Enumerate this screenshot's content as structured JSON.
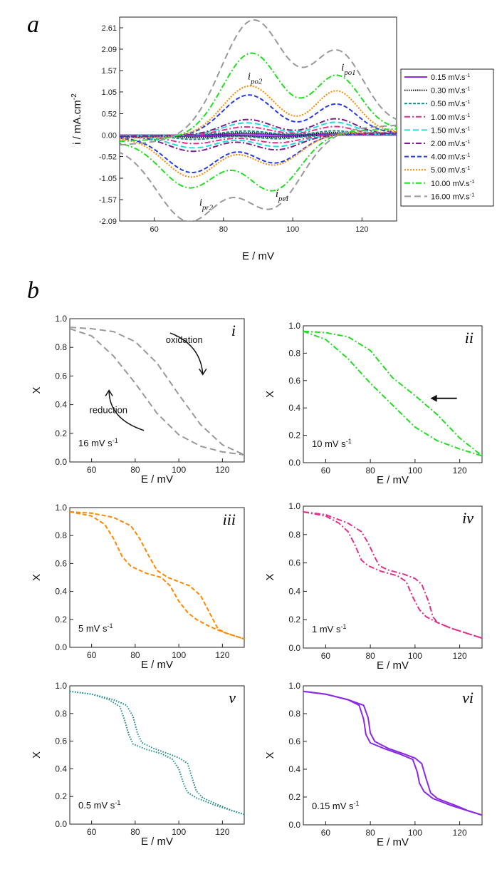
{
  "panel_labels": {
    "a": "a",
    "b": "b"
  },
  "chart_data": [
    {
      "id": "a",
      "type": "line",
      "xlabel": "E  /  mV",
      "ylabel": "i  /  mA.cm",
      "ylabel_exp": "-2",
      "xlim": [
        50,
        130
      ],
      "ylim": [
        -2.09,
        2.87
      ],
      "xticks": [
        60,
        80,
        100,
        120
      ],
      "yticks": [
        -2.09,
        -1.57,
        -1.05,
        -0.52,
        0.0,
        0.52,
        1.05,
        1.57,
        2.09,
        2.61
      ],
      "ytick_labels": [
        "-2.09",
        "-1.57",
        "-1.05",
        "-0.52",
        "0.00",
        "0.52",
        "1.05",
        "1.57",
        "2.09",
        "2.61"
      ],
      "legend_position": "right",
      "peak_labels": [
        {
          "main": "i",
          "sub": "po2",
          "x": 87,
          "y": 1.35
        },
        {
          "main": "i",
          "sub": "po1",
          "x": 114,
          "y": 1.57
        },
        {
          "main": "i",
          "sub": "pr1",
          "x": 95,
          "y": -1.5
        },
        {
          "main": "i",
          "sub": "pr2",
          "x": 73,
          "y": -1.72
        }
      ],
      "series": [
        {
          "name": "0.15 mV.s",
          "rate": 0.15,
          "color": "#8a2be2",
          "dash": "",
          "ox1": 0.03,
          "ox2": 0.03,
          "rd1": 0.03,
          "rd2": 0.03,
          "w": 2.0,
          "lag": 0.3
        },
        {
          "name": "0.30 mV.s",
          "rate": 0.3,
          "color": "#111111",
          "dash": "1.5,1.5",
          "ox1": 0.06,
          "ox2": 0.06,
          "rd1": 0.06,
          "rd2": 0.06,
          "w": 2.2,
          "lag": 0.5
        },
        {
          "name": "0.50 mV.s",
          "rate": 0.5,
          "color": "#1a8a8a",
          "dash": "4,2",
          "ox1": 0.1,
          "ox2": 0.1,
          "rd1": 0.09,
          "rd2": 0.1,
          "w": 2.5,
          "lag": 0.7
        },
        {
          "name": "1.00 mV.s",
          "rate": 1.0,
          "color": "#e0308a",
          "dash": "8,3,2,3",
          "ox1": 0.2,
          "ox2": 0.2,
          "rd1": 0.19,
          "rd2": 0.2,
          "w": 3.0,
          "lag": 1.0
        },
        {
          "name": "1.50 mV.s",
          "rate": 1.5,
          "color": "#22dde0",
          "dash": "8,4",
          "ox1": 0.3,
          "ox2": 0.3,
          "rd1": 0.28,
          "rd2": 0.3,
          "w": 3.3,
          "lag": 1.4
        },
        {
          "name": "2.00 mV.s",
          "rate": 2.0,
          "color": "#7a1f8a",
          "dash": "8,3,2,3",
          "ox1": 0.38,
          "ox2": 0.38,
          "rd1": 0.36,
          "rd2": 0.38,
          "w": 3.6,
          "lag": 1.8
        },
        {
          "name": "4.00 mV.s",
          "rate": 4.0,
          "color": "#2a3be8",
          "dash": "6,3",
          "ox1": 0.72,
          "ox2": 0.98,
          "rd1": 0.68,
          "rd2": 0.88,
          "w": 4.2,
          "lag": 2.5
        },
        {
          "name": "5.00 mV.s",
          "rate": 5.0,
          "color": "#ff8800",
          "dash": "2,2",
          "ox1": 1.03,
          "ox2": 1.2,
          "rd1": 0.73,
          "rd2": 0.98,
          "w": 4.5,
          "lag": 3.0
        },
        {
          "name": "10.00 mV.s",
          "rate": 10.0,
          "color": "#22dd22",
          "dash": "8,3,2,3",
          "ox1": 1.35,
          "ox2": 2.0,
          "rd1": 1.35,
          "rd2": 1.2,
          "w": 5.5,
          "lag": 4.0
        },
        {
          "name": "16.00 mV.s",
          "rate": 16.0,
          "color": "#999999",
          "dash": "9,5",
          "ox1": 1.85,
          "ox2": 2.8,
          "rd1": 1.75,
          "rd2": 1.95,
          "w": 7.0,
          "lag": 5.0
        }
      ],
      "legend_exp": "-1"
    },
    {
      "id": "b-i",
      "type": "line",
      "roman": "i",
      "xlabel": "E  /  mV",
      "ylabel": "X",
      "xlim": [
        50,
        130
      ],
      "ylim": [
        0,
        1.0
      ],
      "xticks": [
        60,
        80,
        100,
        120
      ],
      "yticks": [
        0.0,
        0.2,
        0.4,
        0.6,
        0.8,
        1.0
      ],
      "rate_label": "16 mV s",
      "rate_exp": "-1",
      "color": "#999999",
      "dash": "9,5",
      "annotations": {
        "oxidation": "oxidation",
        "reduction": "reduction"
      },
      "series": [
        {
          "name": "oxidation",
          "points": [
            [
              50,
              0.94
            ],
            [
              60,
              0.93
            ],
            [
              70,
              0.91
            ],
            [
              80,
              0.84
            ],
            [
              90,
              0.69
            ],
            [
              100,
              0.47
            ],
            [
              110,
              0.26
            ],
            [
              120,
              0.12
            ],
            [
              130,
              0.05
            ]
          ]
        },
        {
          "name": "reduction",
          "points": [
            [
              50,
              0.93
            ],
            [
              60,
              0.88
            ],
            [
              70,
              0.74
            ],
            [
              80,
              0.55
            ],
            [
              90,
              0.34
            ],
            [
              100,
              0.19
            ],
            [
              110,
              0.11
            ],
            [
              120,
              0.07
            ],
            [
              130,
              0.05
            ]
          ]
        }
      ]
    },
    {
      "id": "b-ii",
      "type": "line",
      "roman": "ii",
      "xlabel": "E  /  mV",
      "ylabel": "X",
      "xlim": [
        50,
        130
      ],
      "ylim": [
        0,
        1.0
      ],
      "xticks": [
        60,
        80,
        100,
        120
      ],
      "yticks": [
        0.0,
        0.2,
        0.4,
        0.6,
        0.8,
        1.0
      ],
      "rate_label": "10 mV s",
      "rate_exp": "-1",
      "color": "#22dd22",
      "dash": "8,3,2,3",
      "arrow_at": {
        "x": 101,
        "y": 0.47
      },
      "series": [
        {
          "name": "oxidation",
          "points": [
            [
              50,
              0.96
            ],
            [
              60,
              0.95
            ],
            [
              70,
              0.92
            ],
            [
              80,
              0.82
            ],
            [
              90,
              0.62
            ],
            [
              100,
              0.49
            ],
            [
              110,
              0.35
            ],
            [
              120,
              0.18
            ],
            [
              130,
              0.05
            ]
          ]
        },
        {
          "name": "reduction",
          "points": [
            [
              50,
              0.96
            ],
            [
              60,
              0.9
            ],
            [
              70,
              0.76
            ],
            [
              80,
              0.58
            ],
            [
              90,
              0.42
            ],
            [
              100,
              0.26
            ],
            [
              110,
              0.16
            ],
            [
              120,
              0.1
            ],
            [
              130,
              0.05
            ]
          ]
        }
      ]
    },
    {
      "id": "b-iii",
      "type": "line",
      "roman": "iii",
      "xlabel": "E  /  mV",
      "ylabel": "X",
      "xlim": [
        50,
        130
      ],
      "ylim": [
        0,
        1.0
      ],
      "xticks": [
        60,
        80,
        100,
        120
      ],
      "yticks": [
        0.0,
        0.2,
        0.4,
        0.6,
        0.8,
        1.0
      ],
      "rate_label": "5 mV s",
      "rate_exp": "-1",
      "color": "#ff8800",
      "dash": "6,3",
      "series": [
        {
          "name": "oxidation",
          "points": [
            [
              50,
              0.97
            ],
            [
              60,
              0.96
            ],
            [
              70,
              0.93
            ],
            [
              78,
              0.87
            ],
            [
              82,
              0.78
            ],
            [
              86,
              0.66
            ],
            [
              90,
              0.55
            ],
            [
              95,
              0.5
            ],
            [
              100,
              0.47
            ],
            [
              105,
              0.44
            ],
            [
              110,
              0.37
            ],
            [
              114,
              0.25
            ],
            [
              118,
              0.13
            ],
            [
              122,
              0.1
            ],
            [
              126,
              0.08
            ],
            [
              130,
              0.06
            ]
          ]
        },
        {
          "name": "reduction",
          "points": [
            [
              50,
              0.97
            ],
            [
              60,
              0.94
            ],
            [
              66,
              0.88
            ],
            [
              70,
              0.78
            ],
            [
              74,
              0.65
            ],
            [
              78,
              0.58
            ],
            [
              85,
              0.53
            ],
            [
              92,
              0.5
            ],
            [
              96,
              0.44
            ],
            [
              100,
              0.33
            ],
            [
              104,
              0.25
            ],
            [
              108,
              0.2
            ],
            [
              114,
              0.15
            ],
            [
              120,
              0.11
            ],
            [
              126,
              0.08
            ],
            [
              130,
              0.06
            ]
          ]
        }
      ]
    },
    {
      "id": "b-iv",
      "type": "line",
      "roman": "iv",
      "xlabel": "E  /  mV",
      "ylabel": "X",
      "xlim": [
        50,
        130
      ],
      "ylim": [
        0,
        1.0
      ],
      "xticks": [
        60,
        80,
        100,
        120
      ],
      "yticks": [
        0.0,
        0.2,
        0.4,
        0.6,
        0.8,
        1.0
      ],
      "rate_label": "1 mV s",
      "rate_exp": "-1",
      "color": "#e0308a",
      "dash": "8,3,2,3",
      "series": [
        {
          "name": "oxidation",
          "points": [
            [
              50,
              0.96
            ],
            [
              60,
              0.94
            ],
            [
              70,
              0.88
            ],
            [
              76,
              0.82
            ],
            [
              79,
              0.74
            ],
            [
              82,
              0.64
            ],
            [
              84,
              0.58
            ],
            [
              88,
              0.55
            ],
            [
              95,
              0.52
            ],
            [
              100,
              0.49
            ],
            [
              103,
              0.45
            ],
            [
              106,
              0.33
            ],
            [
              108,
              0.22
            ],
            [
              110,
              0.18
            ],
            [
              116,
              0.14
            ],
            [
              122,
              0.11
            ],
            [
              130,
              0.07
            ]
          ]
        },
        {
          "name": "reduction",
          "points": [
            [
              50,
              0.96
            ],
            [
              60,
              0.93
            ],
            [
              66,
              0.88
            ],
            [
              70,
              0.82
            ],
            [
              73,
              0.73
            ],
            [
              76,
              0.62
            ],
            [
              79,
              0.58
            ],
            [
              85,
              0.54
            ],
            [
              92,
              0.51
            ],
            [
              96,
              0.47
            ],
            [
              99,
              0.36
            ],
            [
              102,
              0.27
            ],
            [
              105,
              0.22
            ],
            [
              110,
              0.18
            ],
            [
              116,
              0.14
            ],
            [
              122,
              0.11
            ],
            [
              130,
              0.07
            ]
          ]
        }
      ]
    },
    {
      "id": "b-v",
      "type": "line",
      "roman": "v",
      "xlabel": "E  /  mV",
      "ylabel": "X",
      "xlim": [
        50,
        130
      ],
      "ylim": [
        0,
        1.0
      ],
      "xticks": [
        60,
        80,
        100,
        120
      ],
      "yticks": [
        0.0,
        0.2,
        0.4,
        0.6,
        0.8,
        1.0
      ],
      "rate_label": "0.5 mV s",
      "rate_exp": "-1",
      "color": "#1a8a8a",
      "dash": "1.5,2",
      "series": [
        {
          "name": "oxidation",
          "points": [
            [
              50,
              0.96
            ],
            [
              60,
              0.94
            ],
            [
              70,
              0.9
            ],
            [
              76,
              0.86
            ],
            [
              79,
              0.78
            ],
            [
              81,
              0.66
            ],
            [
              83,
              0.59
            ],
            [
              88,
              0.55
            ],
            [
              95,
              0.51
            ],
            [
              100,
              0.48
            ],
            [
              104,
              0.44
            ],
            [
              106,
              0.34
            ],
            [
              108,
              0.24
            ],
            [
              111,
              0.19
            ],
            [
              118,
              0.14
            ],
            [
              124,
              0.1
            ],
            [
              130,
              0.07
            ]
          ]
        },
        {
          "name": "reduction",
          "points": [
            [
              50,
              0.96
            ],
            [
              60,
              0.94
            ],
            [
              68,
              0.9
            ],
            [
              73,
              0.85
            ],
            [
              75,
              0.76
            ],
            [
              77,
              0.65
            ],
            [
              79,
              0.58
            ],
            [
              85,
              0.54
            ],
            [
              92,
              0.51
            ],
            [
              97,
              0.47
            ],
            [
              100,
              0.4
            ],
            [
              102,
              0.3
            ],
            [
              104,
              0.23
            ],
            [
              108,
              0.19
            ],
            [
              116,
              0.14
            ],
            [
              124,
              0.1
            ],
            [
              130,
              0.07
            ]
          ]
        }
      ]
    },
    {
      "id": "b-vi",
      "type": "line",
      "roman": "vi",
      "xlabel": "E  /  mV",
      "ylabel": "X",
      "xlim": [
        50,
        130
      ],
      "ylim": [
        0,
        1.0
      ],
      "xticks": [
        60,
        80,
        100,
        120
      ],
      "yticks": [
        0.0,
        0.2,
        0.4,
        0.6,
        0.8,
        1.0
      ],
      "rate_label": "0.15 mV s",
      "rate_exp": "-1",
      "color": "#8a2be2",
      "dash": "",
      "series": [
        {
          "name": "oxidation",
          "points": [
            [
              50,
              0.96
            ],
            [
              60,
              0.94
            ],
            [
              70,
              0.9
            ],
            [
              77,
              0.86
            ],
            [
              79,
              0.77
            ],
            [
              80,
              0.66
            ],
            [
              82,
              0.6
            ],
            [
              88,
              0.55
            ],
            [
              95,
              0.51
            ],
            [
              100,
              0.48
            ],
            [
              103,
              0.44
            ],
            [
              105,
              0.33
            ],
            [
              107,
              0.23
            ],
            [
              110,
              0.19
            ],
            [
              118,
              0.14
            ],
            [
              124,
              0.1
            ],
            [
              130,
              0.07
            ]
          ]
        },
        {
          "name": "reduction",
          "points": [
            [
              50,
              0.96
            ],
            [
              60,
              0.94
            ],
            [
              70,
              0.9
            ],
            [
              75,
              0.86
            ],
            [
              77,
              0.76
            ],
            [
              78,
              0.65
            ],
            [
              80,
              0.59
            ],
            [
              86,
              0.55
            ],
            [
              93,
              0.51
            ],
            [
              99,
              0.47
            ],
            [
              101,
              0.38
            ],
            [
              102,
              0.3
            ],
            [
              104,
              0.24
            ],
            [
              108,
              0.19
            ],
            [
              116,
              0.14
            ],
            [
              124,
              0.1
            ],
            [
              130,
              0.07
            ]
          ]
        }
      ]
    }
  ]
}
